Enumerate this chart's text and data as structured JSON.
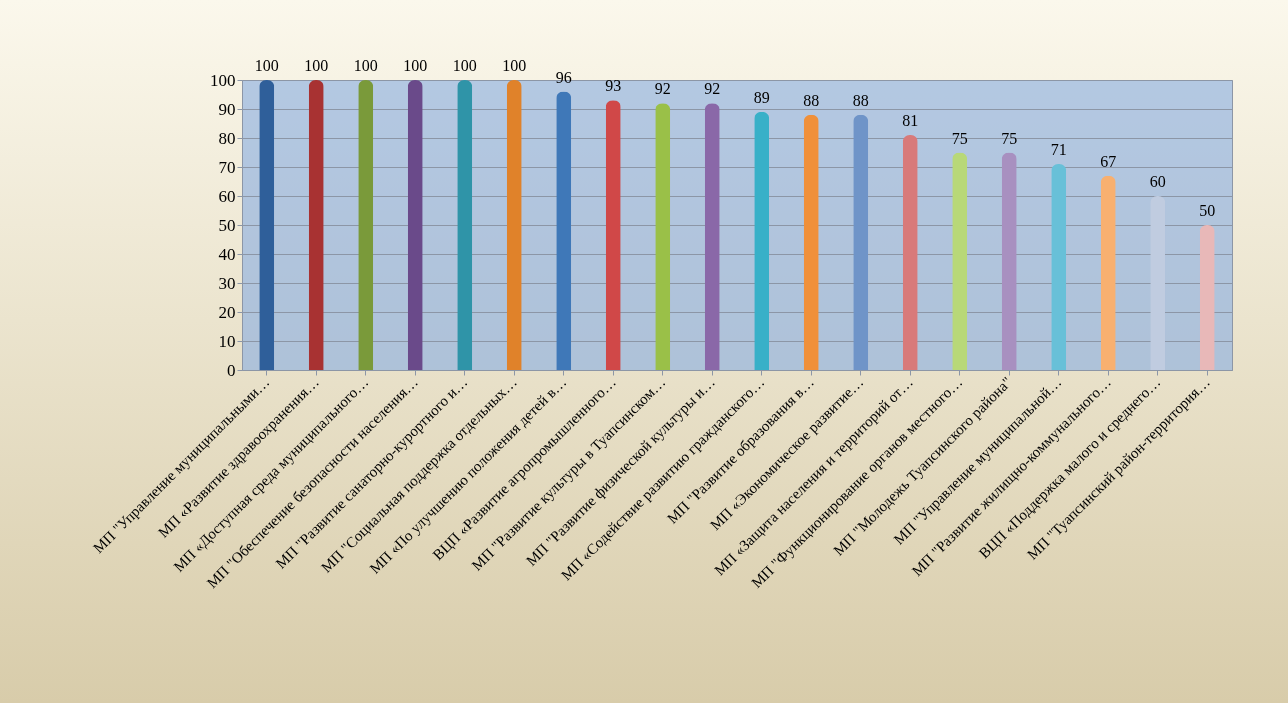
{
  "chart_data": {
    "type": "bar",
    "categories": [
      "МП \"Управление муниципальными…",
      "МП «Развитие здравоохранения…",
      "МП «Доступная среда муниципального…",
      "МП \"Обеспечение безопасности населения…",
      "МП \"Развитие санаторно-курортного и…",
      "МП \"Социальная поддержка отдельных…",
      "МП «По улучшению положения детей в…",
      "ВЦП «Развитие агропромышленного…",
      "МП \"Развитие культуры в  Туапсинском…",
      "МП \"Развитие физической культуры и…",
      "МП «Содействие развитию гражданского…",
      "МП \"Развитие образования в…",
      "МП «Экономическое развитие…",
      "МП «Защита населения и территорий от…",
      "МП \"Функционирование органов местного…",
      "МП \"Молодежь Туапсинского района\"",
      "МП \"Управление муниципальной…",
      "МП \"Развитие жилищно-коммунального…",
      "ВЦП «Поддержка малого и среднего…",
      "МП \"Туапсинский район-территория…"
    ],
    "values": [
      100,
      100,
      100,
      100,
      100,
      100,
      96,
      93,
      92,
      92,
      89,
      88,
      88,
      81,
      75,
      75,
      71,
      67,
      60,
      50
    ],
    "colors": [
      "#2f5f9a",
      "#a83232",
      "#7a9a3a",
      "#6a4a8a",
      "#2f94a8",
      "#e0822a",
      "#3f78b8",
      "#d04848",
      "#9ac048",
      "#8a68a8",
      "#38b0c8",
      "#f0903a",
      "#6f94c8",
      "#d87a7a",
      "#b8d878",
      "#a890c0",
      "#68c0d8",
      "#f8b070",
      "#c0cce0",
      "#e8b8b8"
    ],
    "ylim": [
      0,
      100
    ],
    "yticks": [
      0,
      10,
      20,
      30,
      40,
      50,
      60,
      70,
      80,
      90,
      100
    ],
    "grid": "y",
    "data_labels": true
  }
}
